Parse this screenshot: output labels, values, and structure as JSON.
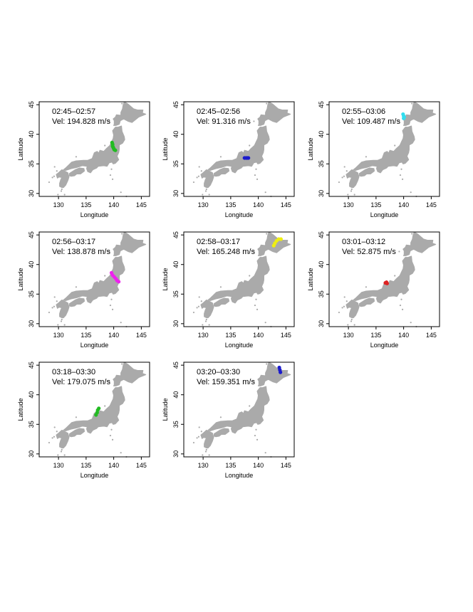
{
  "chart_data": {
    "type": "scatter",
    "layout": "small-multiples grid, 3 columns",
    "xlabel": "Longitude",
    "ylabel": "Latitude",
    "xlim": [
      126.5,
      146.5
    ],
    "ylim": [
      29.5,
      45.5
    ],
    "xticks": [
      130,
      135,
      140,
      145
    ],
    "yticks": [
      30,
      35,
      40,
      45
    ],
    "grid": false,
    "basemap_color": "#aaaaaa",
    "panels": [
      {
        "title": "02:45–02:57",
        "subtitle": "Vel: 194.828 m/s",
        "color": "#22bb22",
        "points": [
          [
            139.7,
            38.6
          ],
          [
            139.8,
            38.3
          ],
          [
            139.8,
            38.0
          ],
          [
            139.9,
            37.8
          ],
          [
            140.0,
            37.6
          ],
          [
            140.1,
            37.4
          ],
          [
            140.3,
            37.3
          ]
        ]
      },
      {
        "title": "02:45–02:56",
        "subtitle": "Vel: 91.316 m/s",
        "color": "#1a1acc",
        "points": [
          [
            137.5,
            36.0
          ],
          [
            137.8,
            36.0
          ],
          [
            138.0,
            36.0
          ],
          [
            138.2,
            36.0
          ]
        ]
      },
      {
        "title": "02:55–03:06",
        "subtitle": "Vel: 109.487 m/s",
        "color": "#33ddee",
        "points": [
          [
            139.9,
            43.4
          ],
          [
            140.0,
            43.1
          ],
          [
            140.1,
            42.9
          ],
          [
            140.0,
            42.7
          ]
        ]
      },
      {
        "title": "02:56–03:17",
        "subtitle": "Vel: 138.878 m/s",
        "color": "#ee22ee",
        "points": [
          [
            139.6,
            38.6
          ],
          [
            139.8,
            38.2
          ],
          [
            140.1,
            37.9
          ],
          [
            140.4,
            37.6
          ],
          [
            140.6,
            37.3
          ],
          [
            140.9,
            37.1
          ]
        ]
      },
      {
        "title": "02:58–03:17",
        "subtitle": "Vel: 165.248 m/s",
        "color": "#eeee11",
        "points": [
          [
            142.8,
            43.2
          ],
          [
            143.0,
            43.6
          ],
          [
            143.3,
            44.0
          ],
          [
            143.7,
            44.3
          ],
          [
            144.1,
            44.3
          ]
        ]
      },
      {
        "title": "03:01–03:12",
        "subtitle": "Vel: 52.875 m/s",
        "color": "#dd2222",
        "points": [
          [
            136.7,
            36.9
          ],
          [
            136.9,
            37.0
          ],
          [
            137.0,
            36.8
          ]
        ]
      },
      {
        "title": "03:18–03:30",
        "subtitle": "Vel: 179.075 m/s",
        "color": "#22bb22",
        "points": [
          [
            136.8,
            36.6
          ],
          [
            137.0,
            37.0
          ],
          [
            137.1,
            37.4
          ],
          [
            137.3,
            37.7
          ]
        ]
      },
      {
        "title": "03:20–03:30",
        "subtitle": "Vel: 159.351 m/s",
        "color": "#1a1acc",
        "points": [
          [
            143.8,
            44.6
          ],
          [
            143.9,
            44.2
          ],
          [
            144.0,
            43.8
          ]
        ]
      }
    ]
  }
}
